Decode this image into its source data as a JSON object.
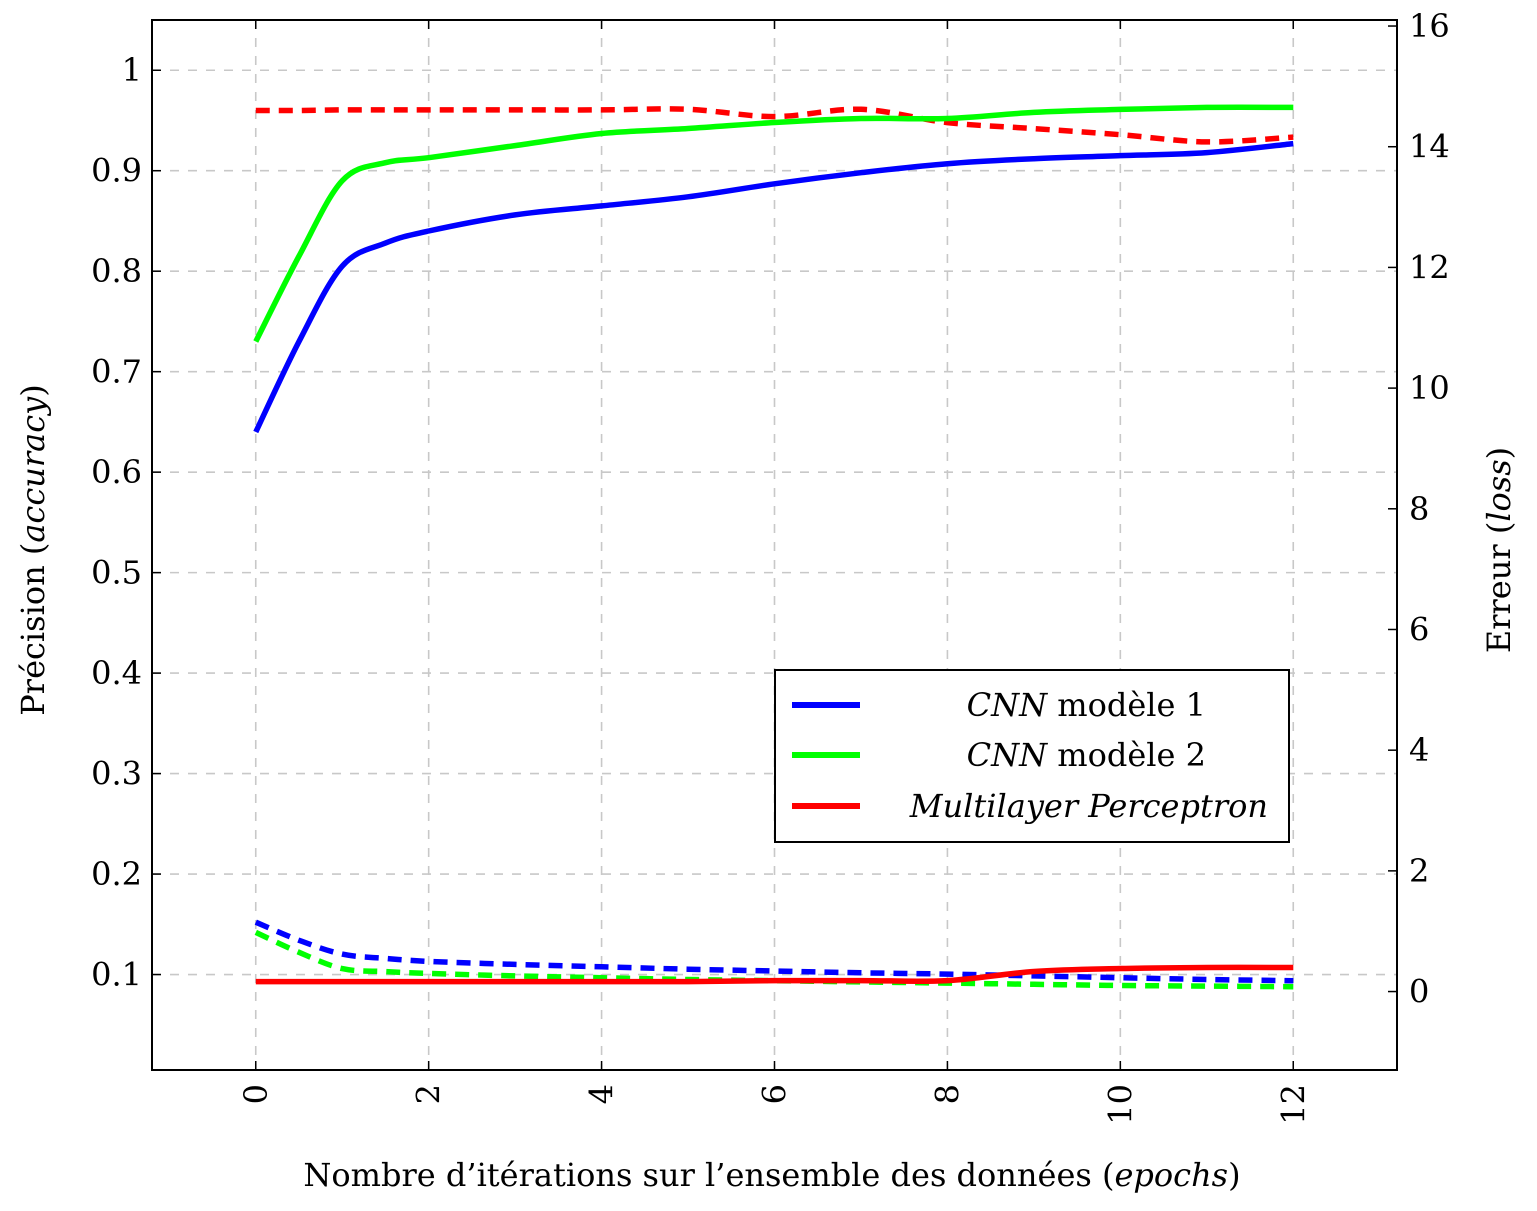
{
  "chart_data": {
    "type": "line",
    "x": [
      0,
      0.5,
      1,
      1.5,
      2,
      3,
      4,
      5,
      6,
      7,
      8,
      9,
      10,
      11,
      12
    ],
    "xlabel": {
      "prefix": "Nombre d’itérations sur l’ensemble des données (",
      "italic": "epochs",
      "suffix": ")"
    },
    "ylabel_left": {
      "prefix": "Précision (",
      "italic": "accuracy",
      "suffix": ")"
    },
    "ylabel_right": {
      "prefix": "Erreur (",
      "italic": "loss",
      "suffix": ")"
    },
    "xlim": [
      -1.2,
      13.2
    ],
    "ylim_left": [
      0.005,
      1.05
    ],
    "ylim_right": [
      -1.3,
      16.1
    ],
    "xticks": [
      "0",
      "2",
      "4",
      "6",
      "8",
      "10",
      "12"
    ],
    "yticks_left": [
      "0.1",
      "0.2",
      "0.3",
      "0.4",
      "0.5",
      "0.6",
      "0.7",
      "0.8",
      "0.9",
      "1"
    ],
    "yticks_right": [
      "0",
      "2",
      "4",
      "6",
      "8",
      "10",
      "12",
      "14",
      "16"
    ],
    "grid": true,
    "series": [
      {
        "name": "CNN modèle 1",
        "name_italic": "CNN",
        "name_rest": " modèle 1",
        "color": "#0000ff",
        "axis": "left",
        "style": "solid",
        "metric": "accuracy",
        "values": [
          0.64,
          0.73,
          0.805,
          0.828,
          0.84,
          0.856,
          0.865,
          0.874,
          0.887,
          0.898,
          0.907,
          0.912,
          0.915,
          0.918,
          0.927
        ]
      },
      {
        "name": "CNN modèle 2",
        "name_italic": "CNN",
        "name_rest": " modèle 2",
        "color": "#00ff00",
        "axis": "left",
        "style": "solid",
        "metric": "accuracy",
        "values": [
          0.73,
          0.815,
          0.89,
          0.908,
          0.913,
          0.925,
          0.937,
          0.942,
          0.948,
          0.952,
          0.952,
          0.958,
          0.961,
          0.963,
          0.963
        ]
      },
      {
        "name": "Multilayer Perceptron",
        "name_italic": "Multilayer Perceptron",
        "name_rest": "",
        "color": "#ff0000",
        "axis": "left",
        "style": "solid",
        "metric": "accuracy",
        "values": [
          0.093,
          0.093,
          0.093,
          0.093,
          0.093,
          0.093,
          0.093,
          0.093,
          0.094,
          0.094,
          0.094,
          0.103,
          0.106,
          0.107,
          0.107
        ]
      },
      {
        "color": "#0000ff",
        "axis": "right",
        "style": "dashed",
        "metric": "loss",
        "values": [
          1.15,
          0.85,
          0.62,
          0.55,
          0.5,
          0.45,
          0.41,
          0.37,
          0.34,
          0.31,
          0.29,
          0.26,
          0.23,
          0.2,
          0.18
        ]
      },
      {
        "color": "#00ff00",
        "axis": "right",
        "style": "dashed",
        "metric": "loss",
        "values": [
          0.98,
          0.65,
          0.38,
          0.33,
          0.3,
          0.26,
          0.23,
          0.2,
          0.18,
          0.16,
          0.14,
          0.12,
          0.1,
          0.09,
          0.08
        ]
      },
      {
        "color": "#ff0000",
        "axis": "right",
        "style": "dashed",
        "metric": "loss",
        "values": [
          14.6,
          14.6,
          14.61,
          14.61,
          14.61,
          14.61,
          14.61,
          14.62,
          14.5,
          14.62,
          14.4,
          14.3,
          14.2,
          14.08,
          14.16
        ]
      }
    ],
    "legend_position": "center-right"
  }
}
